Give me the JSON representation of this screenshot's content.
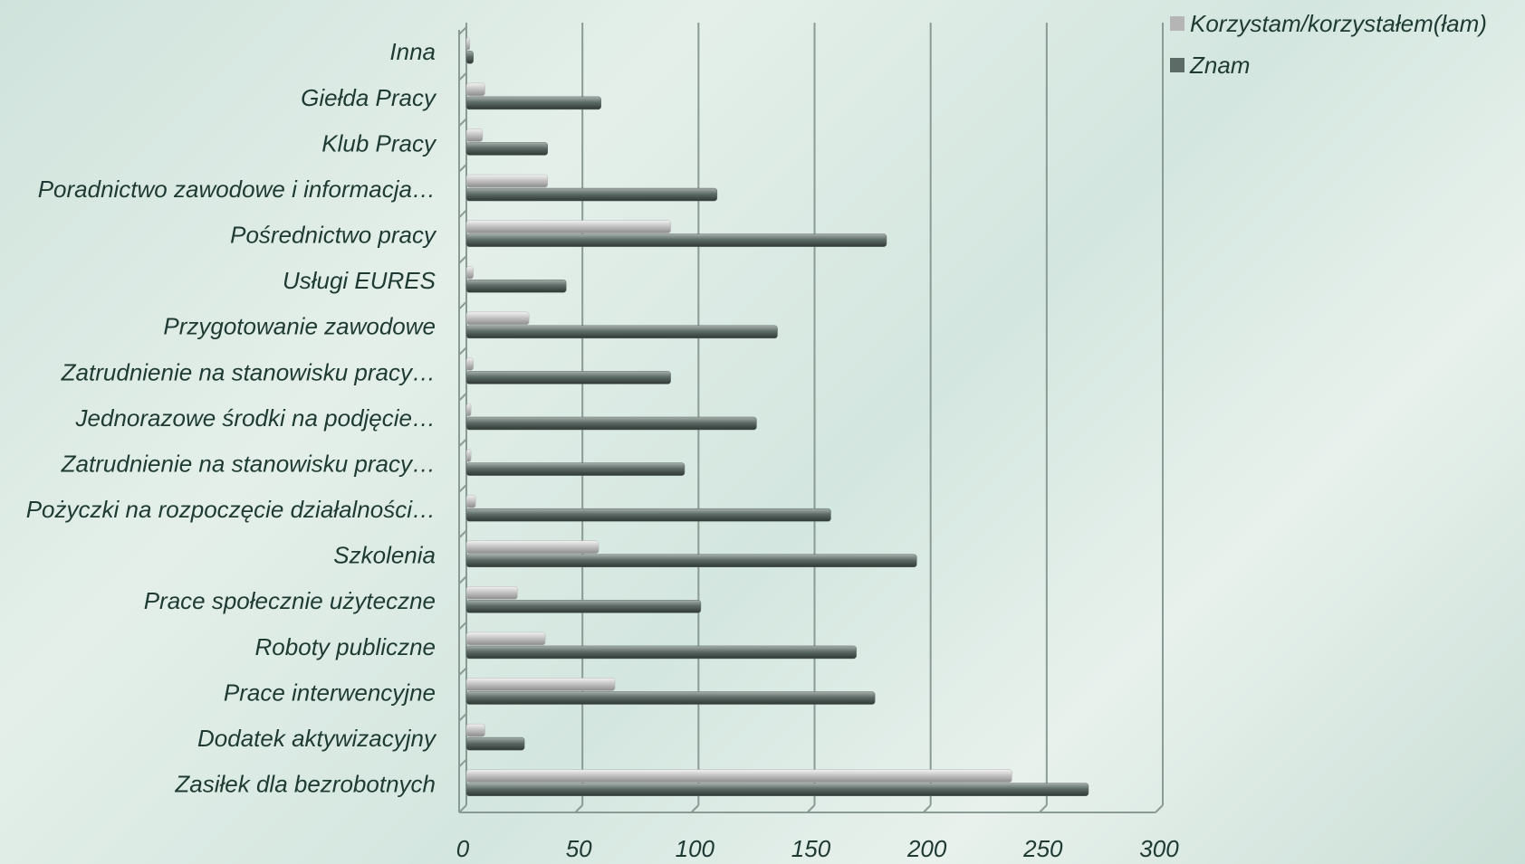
{
  "chart_data": {
    "type": "bar",
    "orientation": "horizontal",
    "categories": [
      "Inna",
      "Giełda Pracy",
      "Klub Pracy",
      "Poradnictwo zawodowe i informacja…",
      "Pośrednictwo pracy",
      "Usługi EURES",
      "Przygotowanie zawodowe",
      "Zatrudnienie na stanowisku pracy…",
      "Jednorazowe środki na podjęcie…",
      "Zatrudnienie na stanowisku pracy…",
      "Pożyczki na rozpoczęcie działalności…",
      "Szkolenia",
      "Prace społecznie użyteczne",
      "Roboty publiczne",
      "Prace interwencyjne",
      "Dodatek aktywizacyjny",
      "Zasiłek dla bezrobotnych"
    ],
    "series": [
      {
        "name": "Korzystam/korzystałem(łam)",
        "color": "#b5b5b5",
        "values": [
          1.5,
          8,
          7,
          35,
          88,
          3,
          27,
          3,
          2,
          2,
          4,
          57,
          22,
          34,
          64,
          8,
          235
        ]
      },
      {
        "name": "Znam",
        "color": "#5d6b66",
        "values": [
          3,
          58,
          35,
          108,
          181,
          43,
          134,
          88,
          125,
          94,
          157,
          194,
          101,
          168,
          176,
          25,
          268
        ]
      }
    ],
    "xlim": [
      0,
      300
    ],
    "xticks": [
      0,
      50,
      100,
      150,
      200,
      250,
      300
    ],
    "grid": true,
    "legend": "top-right"
  }
}
